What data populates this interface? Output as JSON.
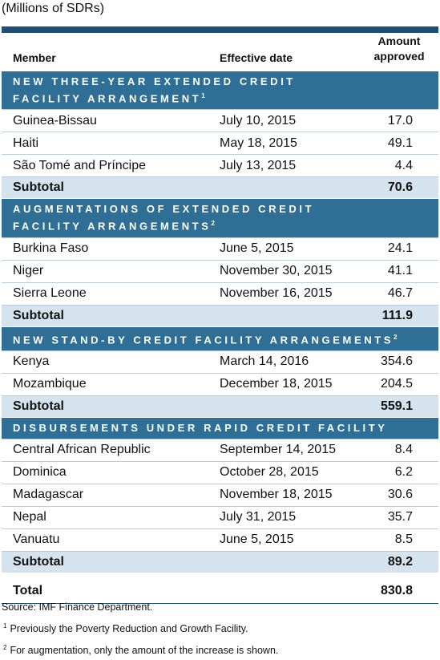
{
  "title": "(Millions of SDRs)",
  "table": {
    "columns": [
      "Member",
      "Effective date",
      "Amount approved"
    ],
    "sections": [
      {
        "title_lines": [
          "NEW THREE-YEAR EXTENDED CREDIT",
          "FACILITY ARRANGEMENT"
        ],
        "note": "1",
        "rows": [
          [
            "Guinea-Bissau",
            "July 10, 2015",
            "17.0"
          ],
          [
            "Haiti",
            "May 18, 2015",
            "49.1"
          ],
          [
            "São Tomé and Príncipe",
            "July 13, 2015",
            "4.4"
          ]
        ],
        "subtotal": [
          "Subtotal",
          "70.6"
        ]
      },
      {
        "title_lines": [
          "AUGMENTATIONS OF EXTENDED CREDIT",
          "FACILITY ARRANGEMENTS"
        ],
        "note": "2",
        "rows": [
          [
            "Burkina Faso",
            "June 5, 2015",
            "24.1"
          ],
          [
            "Niger",
            "November 30, 2015",
            "41.1"
          ],
          [
            "Sierra Leone",
            "November 16, 2015",
            "46.7"
          ]
        ],
        "subtotal": [
          "Subtotal",
          "111.9"
        ]
      },
      {
        "title_lines": [
          "NEW STAND-BY CREDIT FACILITY ARRANGEMENTS"
        ],
        "note": "2",
        "rows": [
          [
            "Kenya",
            "March 14, 2016",
            "354.6"
          ],
          [
            "Mozambique",
            "December 18, 2015",
            "204.5"
          ]
        ],
        "subtotal": [
          "Subtotal",
          "559.1"
        ]
      },
      {
        "title_lines": [
          "DISBURSEMENTS UNDER RAPID CREDIT FACILITY"
        ],
        "rows": [
          [
            "Central African Republic",
            "September 14, 2015",
            "8.4"
          ],
          [
            "Dominica",
            "October 28, 2015",
            "6.2"
          ],
          [
            "Madagascar",
            "November 18, 2015",
            "30.6"
          ],
          [
            "Nepal",
            "July 31, 2015",
            "35.7"
          ],
          [
            "Vanuatu",
            "June 5, 2015",
            "8.5"
          ]
        ],
        "subtotal": [
          "Subtotal",
          "89.2"
        ]
      }
    ],
    "total": [
      "Total",
      "830.8"
    ]
  },
  "source": "Source: IMF Finance Department.",
  "footnotes": [
    {
      "marker": "1",
      "text": "Previously the Poverty Reduction and Growth Facility."
    },
    {
      "marker": "2",
      "text": "For augmentation, only the amount of the increase is shown."
    }
  ]
}
